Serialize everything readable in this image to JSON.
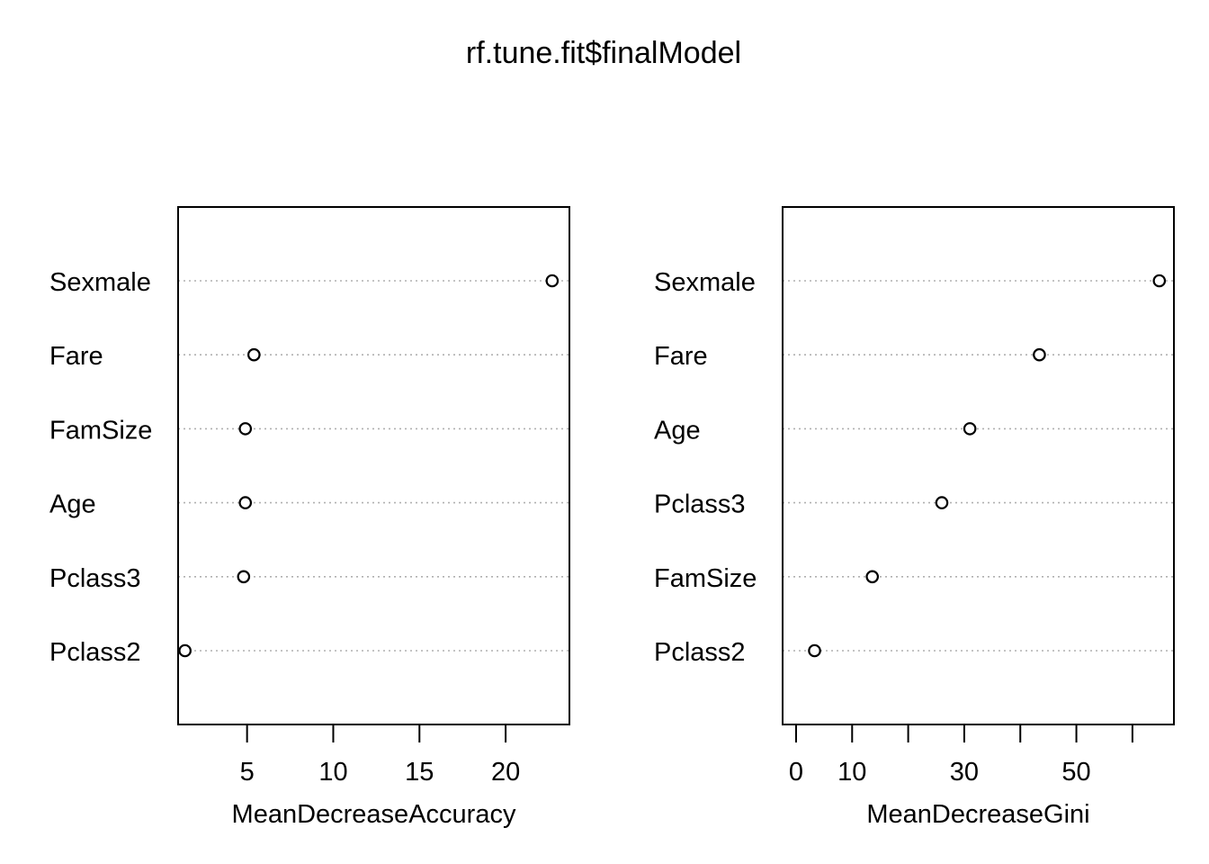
{
  "title": "rf.tune.fit$finalModel",
  "chart_data": [
    {
      "type": "scatter",
      "variant": "dotchart",
      "xlabel": "MeanDecreaseAccuracy",
      "xlim": [
        1.0,
        23.7
      ],
      "xticks": [
        5,
        10,
        15,
        20
      ],
      "categories": [
        "Sexmale",
        "Fare",
        "FamSize",
        "Age",
        "Pclass3",
        "Pclass2"
      ],
      "values": [
        22.7,
        5.4,
        4.9,
        4.9,
        4.8,
        1.4
      ],
      "grid": "dotted-horizontal"
    },
    {
      "type": "scatter",
      "variant": "dotchart",
      "xlabel": "MeanDecreaseGini",
      "xlim": [
        -2.4,
        67.4
      ],
      "xticks": [
        0,
        10,
        20,
        30,
        40,
        50,
        60
      ],
      "xticklabels": [
        "0",
        "10",
        "",
        "30",
        "",
        "50",
        ""
      ],
      "categories": [
        "Sexmale",
        "Fare",
        "Age",
        "Pclass3",
        "FamSize",
        "Pclass2"
      ],
      "values": [
        64.8,
        43.4,
        31.0,
        26.0,
        13.6,
        3.3
      ],
      "grid": "dotted-horizontal"
    }
  ]
}
